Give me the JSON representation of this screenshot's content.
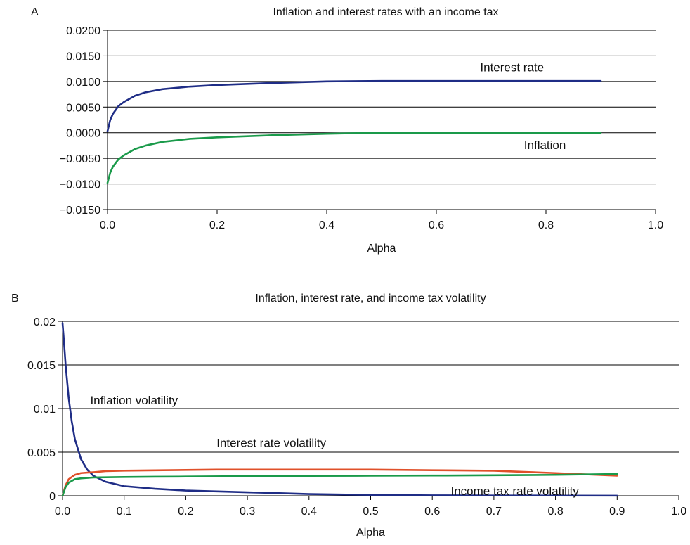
{
  "chart_data": [
    {
      "type": "line",
      "panel_label": "A",
      "title": "Inflation and interest rates with an income tax",
      "xlabel": "Alpha",
      "ylabel": "",
      "xlim": [
        0,
        1
      ],
      "ylim": [
        -0.015,
        0.02
      ],
      "x_ticks": [
        0,
        0.2,
        0.4,
        0.6,
        0.8,
        1
      ],
      "x_tick_labels": [
        "0.0",
        "0.2",
        "0.4",
        "0.6",
        "0.8",
        "1.0"
      ],
      "y_ticks": [
        -0.015,
        -0.01,
        -0.005,
        0,
        0.005,
        0.01,
        0.015,
        0.02
      ],
      "y_tick_labels": [
        "−0.0150",
        "−0.0100",
        "−0.0050",
        "0.0000",
        "0.0050",
        "0.0100",
        "0.0150",
        "0.0200"
      ],
      "grid": "horizontal",
      "series": [
        {
          "name": "Interest rate",
          "color": "#1f2d86",
          "x": [
            0,
            0.005,
            0.01,
            0.02,
            0.03,
            0.05,
            0.07,
            0.1,
            0.15,
            0.2,
            0.3,
            0.4,
            0.5,
            0.6,
            0.7,
            0.8,
            0.9
          ],
          "y": [
            0.0003,
            0.0025,
            0.0037,
            0.0052,
            0.006,
            0.0072,
            0.0079,
            0.0085,
            0.009,
            0.0093,
            0.0097,
            0.01,
            0.0101,
            0.0101,
            0.0101,
            0.0101,
            0.0101
          ]
        },
        {
          "name": "Inflation",
          "color": "#1a9a4a",
          "x": [
            0,
            0.005,
            0.01,
            0.02,
            0.03,
            0.05,
            0.07,
            0.1,
            0.15,
            0.2,
            0.3,
            0.4,
            0.5,
            0.6,
            0.7,
            0.8,
            0.9
          ],
          "y": [
            -0.0098,
            -0.0078,
            -0.0066,
            -0.0052,
            -0.0044,
            -0.0032,
            -0.0025,
            -0.0018,
            -0.0012,
            -0.0009,
            -0.0005,
            -0.0002,
            0,
            0,
            0,
            0,
            0
          ]
        }
      ],
      "annotations": [
        {
          "text": "Interest rate",
          "x": 0.68,
          "y": 0.012
        },
        {
          "text": "Inflation",
          "x": 0.76,
          "y": -0.0032
        }
      ]
    },
    {
      "type": "line",
      "panel_label": "B",
      "title": "Inflation, interest rate, and income tax volatility",
      "xlabel": "Alpha",
      "ylabel": "",
      "xlim": [
        0,
        1
      ],
      "ylim": [
        0,
        0.02
      ],
      "x_ticks": [
        0,
        0.1,
        0.2,
        0.3,
        0.4,
        0.5,
        0.6,
        0.7,
        0.8,
        0.9,
        1
      ],
      "x_tick_labels": [
        "0.0",
        "0.1",
        "0.2",
        "0.3",
        "0.4",
        "0.5",
        "0.6",
        "0.7",
        "0.8",
        "0.9",
        "1.0"
      ],
      "y_ticks": [
        0,
        0.005,
        0.01,
        0.015,
        0.02
      ],
      "y_tick_labels": [
        "0",
        "0.005",
        "0.01",
        "0.015",
        "0.02"
      ],
      "grid": "horizontal",
      "series": [
        {
          "name": "Inflation volatility",
          "color": "#1f2d86",
          "x": [
            0,
            0.002,
            0.005,
            0.01,
            0.015,
            0.02,
            0.03,
            0.04,
            0.05,
            0.07,
            0.1,
            0.15,
            0.2,
            0.3,
            0.4,
            0.5,
            0.6,
            0.7,
            0.8,
            0.9
          ],
          "y": [
            0.0198,
            0.018,
            0.015,
            0.0112,
            0.0085,
            0.0065,
            0.0042,
            0.003,
            0.0023,
            0.0016,
            0.0011,
            0.0008,
            0.0006,
            0.0004,
            0.0002,
            0.0001,
            5e-05,
            3e-05,
            2e-05,
            1e-05
          ]
        },
        {
          "name": "Interest rate volatility",
          "color": "#e0502a",
          "x": [
            0,
            0.005,
            0.01,
            0.02,
            0.03,
            0.05,
            0.07,
            0.1,
            0.15,
            0.2,
            0.25,
            0.3,
            0.4,
            0.5,
            0.6,
            0.7,
            0.8,
            0.9
          ],
          "y": [
            0,
            0.0012,
            0.0019,
            0.0024,
            0.0026,
            0.0027,
            0.00283,
            0.00288,
            0.00292,
            0.00296,
            0.003,
            0.003,
            0.003,
            0.003,
            0.00293,
            0.00287,
            0.0026,
            0.0023
          ]
        },
        {
          "name": "Income tax rate volatility",
          "color": "#1a9a4a",
          "x": [
            0,
            0.005,
            0.01,
            0.02,
            0.03,
            0.05,
            0.07,
            0.1,
            0.15,
            0.2,
            0.3,
            0.4,
            0.5,
            0.6,
            0.7,
            0.8,
            0.9
          ],
          "y": [
            0,
            0.001,
            0.0015,
            0.0019,
            0.002,
            0.0021,
            0.00212,
            0.00215,
            0.00218,
            0.0022,
            0.00225,
            0.00228,
            0.0023,
            0.00232,
            0.00235,
            0.0024,
            0.0025
          ]
        }
      ],
      "annotations": [
        {
          "text": "Inflation volatility",
          "x": 0.045,
          "y": 0.0105
        },
        {
          "text": "Interest rate volatility",
          "x": 0.25,
          "y": 0.0056
        },
        {
          "text": "Income tax rate volatility",
          "x": 0.63,
          "y": 0.0001
        }
      ]
    }
  ]
}
